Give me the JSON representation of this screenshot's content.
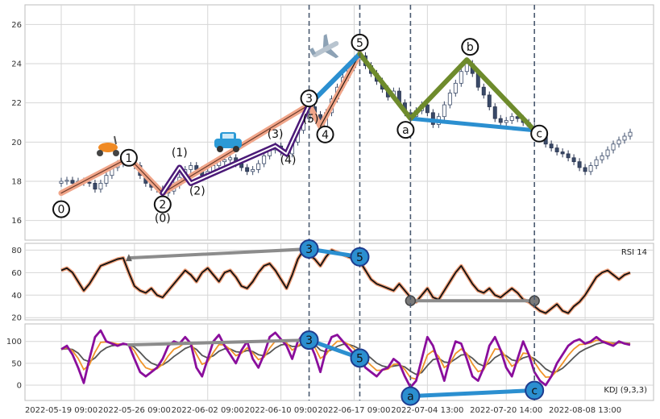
{
  "chart_data": {
    "type": "line",
    "x_tick_labels": [
      "2022-05-19 09:00",
      "2022-05-26 09:00",
      "2022-06-02 09:00",
      "2022-06-10 09:00",
      "2022-06-17 09:00",
      "2022-07-04 13:00",
      "2022-07-20 14:00",
      "2022-08-08 13:00"
    ],
    "price_panel": {
      "kind": "candlestick",
      "ylim": [
        15,
        27
      ],
      "yticks": [
        16,
        18,
        20,
        22,
        24,
        26
      ],
      "close": [
        18.0,
        18.05,
        17.9,
        18.0,
        17.95,
        17.9,
        17.6,
        17.9,
        18.3,
        18.7,
        18.9,
        19.1,
        19.2,
        18.8,
        18.3,
        17.9,
        17.7,
        17.6,
        17.4,
        17.5,
        17.8,
        18.2,
        18.6,
        18.8,
        18.6,
        18.3,
        18.5,
        18.8,
        19.0,
        19.1,
        19.2,
        18.9,
        18.7,
        18.5,
        18.6,
        18.9,
        19.3,
        19.6,
        19.8,
        19.5,
        19.4,
        20.0,
        20.6,
        21.2,
        21.8,
        21.4,
        20.8,
        21.5,
        22.2,
        22.8,
        23.3,
        23.8,
        24.2,
        24.4,
        23.9,
        23.5,
        23.1,
        22.7,
        22.3,
        22.6,
        22.0,
        21.5,
        21.3,
        21.6,
        21.9,
        21.5,
        20.9,
        21.3,
        21.9,
        22.5,
        23.0,
        23.6,
        24.0,
        23.5,
        22.8,
        22.4,
        21.8,
        21.2,
        21.0,
        21.1,
        21.3,
        21.2,
        21.0,
        20.8,
        20.7,
        20.4,
        19.9,
        19.7,
        19.5,
        19.4,
        19.2,
        19.0,
        18.7,
        18.5,
        18.8,
        19.1,
        19.3,
        19.6,
        19.9,
        20.1,
        20.3,
        20.5
      ],
      "wave_points": [
        {
          "label": "0",
          "i": 0,
          "price": 17.4
        },
        {
          "label": "1",
          "i": 12,
          "price": 19.2
        },
        {
          "label": "2",
          "i": 18,
          "price": 17.4
        },
        {
          "label": "3",
          "i": 44,
          "price": 21.9
        },
        {
          "label": "4",
          "i": 46,
          "price": 20.8
        },
        {
          "label": "5",
          "i": 53,
          "price": 24.5
        },
        {
          "label": "a",
          "i": 62,
          "price": 21.2
        },
        {
          "label": "b",
          "i": 72,
          "price": 24.2
        },
        {
          "label": "c",
          "i": 84,
          "price": 20.6
        }
      ],
      "sub_waves": [
        {
          "label": "(0)",
          "i": 18,
          "price": 17.4
        },
        {
          "label": "(1)",
          "i": 21,
          "price": 18.7
        },
        {
          "label": "(2)",
          "i": 23,
          "price": 17.9
        },
        {
          "label": "(3)",
          "i": 38,
          "price": 19.8
        },
        {
          "label": "(4)",
          "i": 40,
          "price": 19.4
        },
        {
          "label": "(5)",
          "i": 44,
          "price": 21.9
        }
      ],
      "icons": [
        "scooter-icon",
        "car-icon",
        "airplane-icon"
      ]
    },
    "rsi_panel": {
      "label": "RSI 14",
      "ylim": [
        18,
        86
      ],
      "yticks": [
        20,
        40,
        60,
        80
      ],
      "values": [
        62,
        64,
        60,
        52,
        44,
        50,
        58,
        66,
        68,
        70,
        72,
        73,
        60,
        48,
        44,
        42,
        46,
        40,
        38,
        44,
        50,
        56,
        62,
        58,
        52,
        60,
        64,
        58,
        52,
        60,
        62,
        56,
        48,
        46,
        52,
        60,
        66,
        68,
        62,
        54,
        46,
        58,
        72,
        80,
        76,
        72,
        66,
        74,
        80,
        78,
        76,
        74,
        72,
        70,
        62,
        54,
        50,
        48,
        46,
        44,
        50,
        44,
        38,
        34,
        40,
        46,
        38,
        36,
        44,
        52,
        60,
        66,
        58,
        50,
        44,
        42,
        46,
        40,
        38,
        42,
        46,
        42,
        36,
        34,
        30,
        26,
        24,
        28,
        32,
        26,
        24,
        30,
        34,
        40,
        48,
        56,
        60,
        62,
        58,
        54,
        58,
        60
      ],
      "divergences": [
        {
          "i1": 12,
          "v1": 73,
          "i2": 44,
          "v2": 81
        },
        {
          "i1": 44,
          "v1": 81,
          "i2": 53,
          "v2": 74
        },
        {
          "i1": 62,
          "v1": 35,
          "i2": 84,
          "v2": 35
        }
      ],
      "markers": [
        {
          "label": "3",
          "i": 44,
          "v": 81
        },
        {
          "label": "5",
          "i": 53,
          "v": 74
        }
      ]
    },
    "kdj_panel": {
      "label": "KDJ (9,3,3)",
      "ylim": [
        -35,
        140
      ],
      "yticks": [
        0,
        50,
        100
      ],
      "j_values": [
        82,
        90,
        70,
        40,
        5,
        60,
        110,
        125,
        100,
        95,
        90,
        95,
        92,
        60,
        30,
        20,
        30,
        40,
        60,
        90,
        100,
        95,
        110,
        95,
        40,
        20,
        60,
        100,
        115,
        90,
        70,
        50,
        80,
        100,
        60,
        40,
        70,
        110,
        120,
        105,
        90,
        60,
        100,
        118,
        100,
        70,
        30,
        80,
        110,
        115,
        100,
        85,
        70,
        60,
        40,
        30,
        20,
        35,
        40,
        60,
        50,
        20,
        -5,
        10,
        60,
        110,
        90,
        50,
        10,
        60,
        100,
        95,
        60,
        20,
        10,
        40,
        90,
        110,
        80,
        40,
        20,
        60,
        100,
        70,
        30,
        10,
        0,
        20,
        50,
        70,
        90,
        100,
        105,
        95,
        100,
        110,
        100,
        95,
        90,
        100,
        95,
        92
      ],
      "divergences": [
        {
          "i1": 12,
          "v1": 92,
          "i2": 44,
          "v2": 103
        },
        {
          "i1": 44,
          "v1": 103,
          "i2": 53,
          "v2": 62
        },
        {
          "i1": 62,
          "v1": -25,
          "i2": 84,
          "v2": -12
        }
      ],
      "markers": [
        {
          "label": "3",
          "i": 44,
          "v": 103
        },
        {
          "label": "5",
          "i": 53,
          "v": 62
        },
        {
          "label": "a",
          "i": 62,
          "v": -25
        },
        {
          "label": "c",
          "i": 84,
          "v": -12
        }
      ]
    },
    "vertical_markers_i": [
      44,
      53,
      62,
      84
    ],
    "grid": true
  }
}
